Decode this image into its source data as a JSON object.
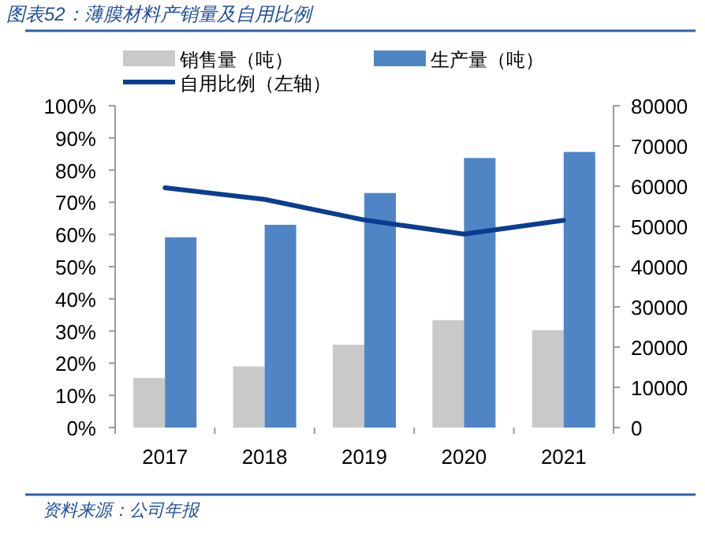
{
  "chart_data": {
    "type": "bar",
    "title": "图表52：薄膜材料产销量及自用比例",
    "categories": [
      "2017",
      "2018",
      "2019",
      "2020",
      "2021"
    ],
    "series": [
      {
        "name": "销售量（吨）",
        "axis": "y2",
        "color": "#c9c9c9",
        "values": [
          12300,
          15200,
          20600,
          26700,
          24200
        ]
      },
      {
        "name": "生产量（吨）",
        "axis": "y2",
        "color": "#4f85c5",
        "values": [
          47300,
          50400,
          58300,
          67000,
          68500
        ]
      },
      {
        "name": "自用比例（左轴）",
        "type": "line",
        "axis": "y",
        "color": "#0a3d91",
        "values": [
          74.5,
          70.9,
          64.5,
          60.1,
          64.4
        ]
      }
    ],
    "ylim": [
      0,
      100
    ],
    "yticks": [
      {
        "value": 0,
        "label": "0%"
      },
      {
        "value": 10,
        "label": "10%"
      },
      {
        "value": 20,
        "label": "20%"
      },
      {
        "value": 30,
        "label": "30%"
      },
      {
        "value": 40,
        "label": "40%"
      },
      {
        "value": 50,
        "label": "50%"
      },
      {
        "value": 60,
        "label": "60%"
      },
      {
        "value": 70,
        "label": "70%"
      },
      {
        "value": 80,
        "label": "80%"
      },
      {
        "value": 90,
        "label": "90%"
      },
      {
        "value": 100,
        "label": "100%"
      }
    ],
    "y2lim": [
      0,
      80000
    ],
    "y2ticks": [
      0,
      10000,
      20000,
      30000,
      40000,
      50000,
      60000,
      70000,
      80000
    ],
    "legend": "top",
    "annotations": [
      "资料来源：公司年报"
    ]
  }
}
